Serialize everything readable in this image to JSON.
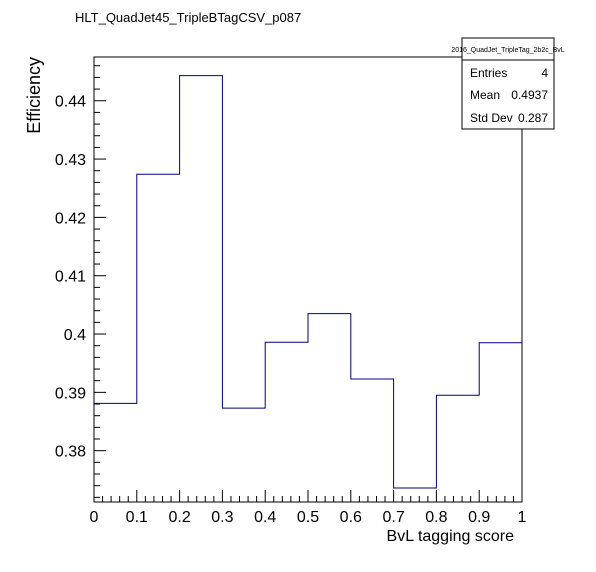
{
  "chart_data": {
    "type": "histogram",
    "title": "HLT_QuadJet45_TripleBTagCSV_p087",
    "xlabel": "BvL tagging score",
    "ylabel": "Efficiency",
    "xlim": [
      0,
      1
    ],
    "ylim": [
      0.3712,
      0.4475
    ],
    "x_ticks": [
      0,
      0.1,
      0.2,
      0.3,
      0.4,
      0.5,
      0.6,
      0.7,
      0.8,
      0.9,
      1
    ],
    "x_tick_labels": [
      "0",
      "0.1",
      "0.2",
      "0.3",
      "0.4",
      "0.5",
      "0.6",
      "0.7",
      "0.8",
      "0.9",
      "1"
    ],
    "y_ticks": [
      0.38,
      0.39,
      0.4,
      0.41,
      0.42,
      0.43,
      0.44
    ],
    "y_tick_labels": [
      "0.38",
      "0.39",
      "0.4",
      "0.41",
      "0.42",
      "0.43",
      "0.44"
    ],
    "bin_edges": [
      0,
      0.1,
      0.2,
      0.3,
      0.4,
      0.5,
      0.6,
      0.7,
      0.8,
      0.9,
      1.0
    ],
    "values": [
      0.3881,
      0.4274,
      0.4443,
      0.3873,
      0.3986,
      0.4035,
      0.3923,
      0.3736,
      0.3895,
      0.3985
    ],
    "line_color": "#000080",
    "grid": false,
    "stats_box": {
      "name": "2016_QuadJet_TripleTag_2b2c_BvL",
      "rows": [
        {
          "label": "Entries",
          "value": "4"
        },
        {
          "label": "Mean",
          "value": "0.4937"
        },
        {
          "label": "Std Dev",
          "value": "0.287"
        }
      ],
      "placement": "top-right"
    }
  }
}
